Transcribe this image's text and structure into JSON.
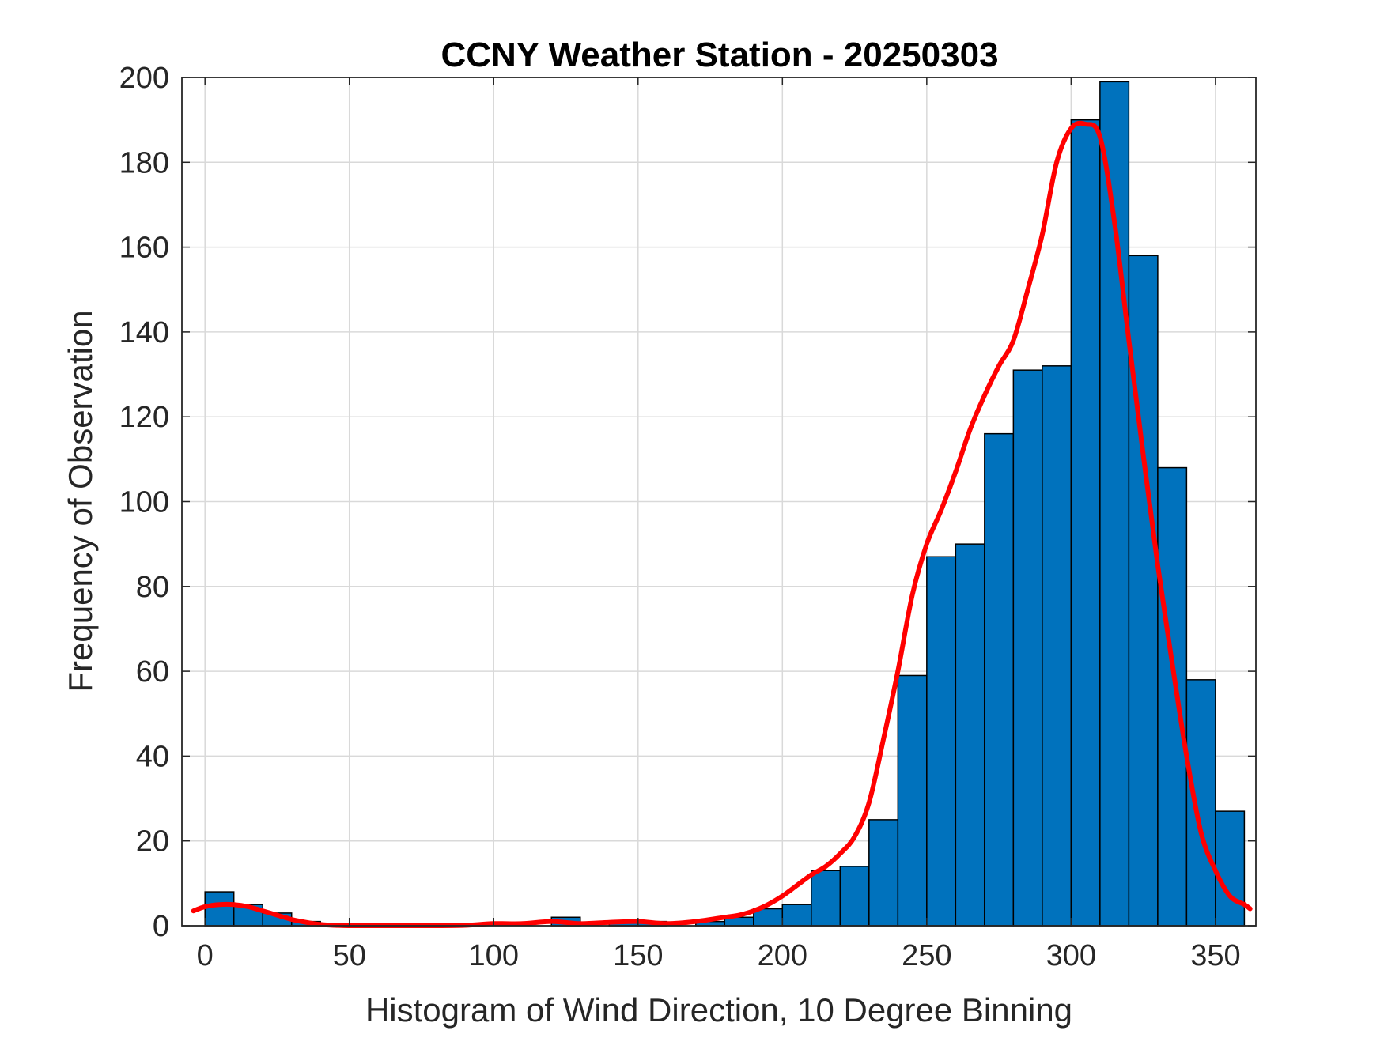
{
  "chart_data": {
    "type": "bar",
    "title": "CCNY Weather Station - 20250303",
    "xlabel": "Histogram of Wind Direction, 10 Degree Binning",
    "ylabel": "Frequency of Observation",
    "xlim": [
      -8,
      364
    ],
    "ylim": [
      0,
      200
    ],
    "grid": true,
    "bin_width": 10,
    "bin_starts": [
      0,
      10,
      20,
      30,
      40,
      50,
      60,
      70,
      80,
      90,
      100,
      110,
      120,
      130,
      140,
      150,
      160,
      170,
      180,
      190,
      200,
      210,
      220,
      230,
      240,
      250,
      260,
      270,
      280,
      290,
      300,
      310,
      320,
      330,
      340,
      350
    ],
    "values": [
      8,
      5,
      3,
      1,
      0,
      0,
      0,
      0,
      0,
      0,
      0,
      0,
      2,
      0,
      1,
      1,
      0,
      1,
      2,
      4,
      5,
      13,
      14,
      25,
      59,
      87,
      90,
      116,
      131,
      132,
      190,
      199,
      158,
      108,
      58,
      27
    ],
    "xticks": [
      0,
      50,
      100,
      150,
      200,
      250,
      300,
      350
    ],
    "yticks": [
      0,
      20,
      40,
      60,
      80,
      100,
      120,
      140,
      160,
      180,
      200
    ],
    "fit_curve": {
      "name": "density fit",
      "x": [
        -4,
        0,
        5,
        10,
        15,
        20,
        25,
        30,
        35,
        40,
        45,
        50,
        60,
        70,
        80,
        90,
        100,
        110,
        120,
        130,
        140,
        150,
        160,
        170,
        180,
        185,
        190,
        195,
        200,
        205,
        210,
        215,
        220,
        225,
        230,
        235,
        240,
        245,
        250,
        255,
        260,
        265,
        270,
        275,
        280,
        285,
        290,
        295,
        300,
        305,
        310,
        315,
        320,
        325,
        330,
        335,
        340,
        345,
        350,
        355,
        360,
        362
      ],
      "y": [
        3.5,
        4.5,
        5,
        5,
        4.5,
        3.5,
        2.5,
        1.5,
        0.8,
        0.3,
        0.1,
        0,
        0,
        0,
        0,
        0.1,
        0.5,
        0.5,
        1,
        0.5,
        0.8,
        1,
        0.5,
        1,
        2,
        2.5,
        3.5,
        5,
        7,
        9.5,
        12,
        14,
        17,
        21,
        29,
        44,
        60,
        78,
        90,
        98,
        107,
        117,
        125,
        132,
        138,
        150,
        163,
        180,
        188,
        189,
        186,
        166,
        138,
        111,
        85,
        62,
        40,
        22,
        13,
        7,
        5,
        4
      ],
      "color": "#ff0000"
    },
    "colors": {
      "bar_fill": "#0072BD",
      "bar_edge": "#000000",
      "fit_line": "#ff0000",
      "grid": "#d9d9d9",
      "axes": "#262626"
    }
  }
}
